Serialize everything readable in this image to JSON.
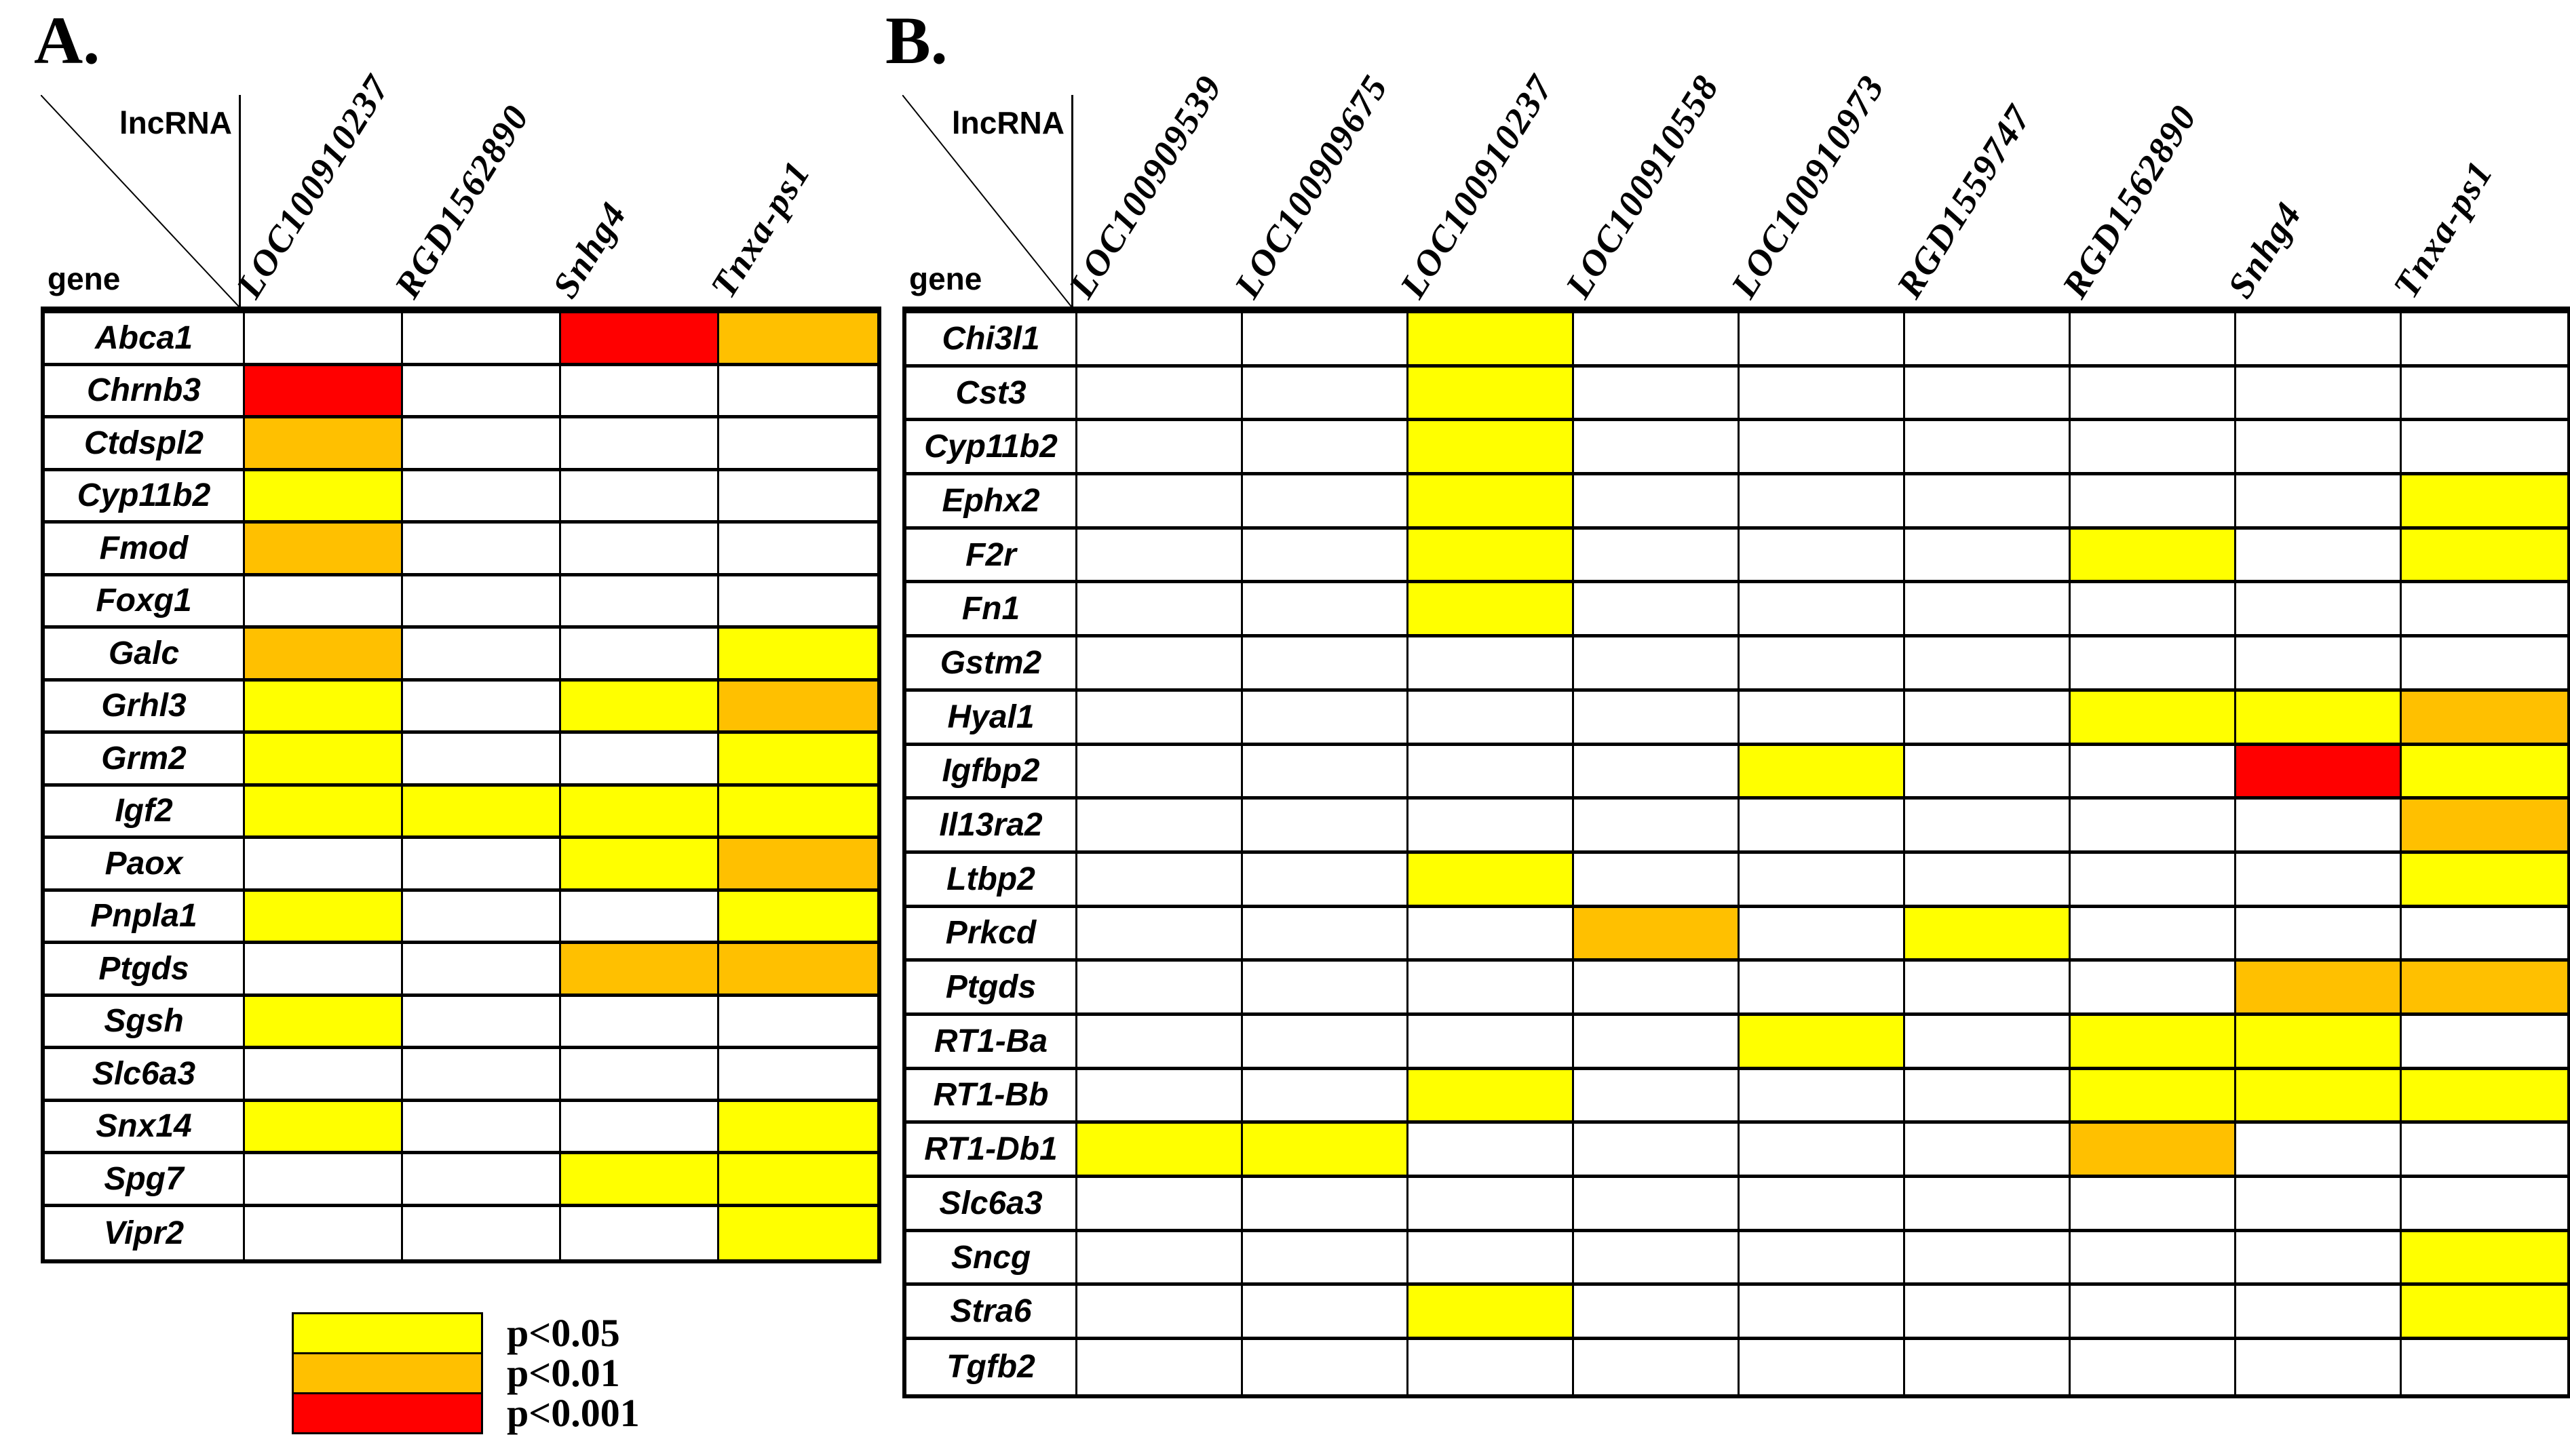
{
  "figure": {
    "background": "#FFFFFF"
  },
  "colors": {
    "": "#FFFFFF",
    "p<0.05": "#FFFF00",
    "p<0.01": "#FFC000",
    "p<0.001": "#FF0000"
  },
  "legend": {
    "items": [
      {
        "key": "p05",
        "label": "p<0.05",
        "color": "#FFFF00"
      },
      {
        "key": "p01",
        "label": "p<0.01",
        "color": "#FFC000"
      },
      {
        "key": "p001",
        "label": "p<0.001",
        "color": "#FF0000"
      }
    ]
  },
  "chart_data": [
    {
      "type": "heatmap",
      "panel": "A.",
      "x_axis_label": "lncRNA",
      "y_axis_label": "gene",
      "legend_position": "below-left",
      "columns": [
        "LOC100910237",
        "RGD1562890",
        "Snhg4",
        "Tnxa-ps1"
      ],
      "rows": [
        "Abca1",
        "Chrnb3",
        "Ctdspl2",
        "Cyp11b2",
        "Fmod",
        "Foxg1",
        "Galc",
        "Grhl3",
        "Grm2",
        "Igf2",
        "Paox",
        "Pnpla1",
        "Ptgds",
        "Sgsh",
        "Slc6a3",
        "Snx14",
        "Spg7",
        "Vipr2"
      ],
      "values": [
        [
          "",
          "",
          "p<0.001",
          "p<0.01"
        ],
        [
          "p<0.001",
          "",
          "",
          ""
        ],
        [
          "p<0.01",
          "",
          "",
          ""
        ],
        [
          "p<0.05",
          "",
          "",
          ""
        ],
        [
          "p<0.01",
          "",
          "",
          ""
        ],
        [
          "",
          "",
          "",
          ""
        ],
        [
          "p<0.01",
          "",
          "",
          "p<0.05"
        ],
        [
          "p<0.05",
          "",
          "p<0.05",
          "p<0.01"
        ],
        [
          "p<0.05",
          "",
          "",
          "p<0.05"
        ],
        [
          "p<0.05",
          "p<0.05",
          "p<0.05",
          "p<0.05"
        ],
        [
          "",
          "",
          "p<0.05",
          "p<0.01"
        ],
        [
          "p<0.05",
          "",
          "",
          "p<0.05"
        ],
        [
          "",
          "",
          "p<0.01",
          "p<0.01"
        ],
        [
          "p<0.05",
          "",
          "",
          ""
        ],
        [
          "",
          "",
          "",
          ""
        ],
        [
          "p<0.05",
          "",
          "",
          "p<0.05"
        ],
        [
          "",
          "",
          "p<0.05",
          "p<0.05"
        ],
        [
          "",
          "",
          "",
          "p<0.05"
        ]
      ],
      "value_meaning": {
        "": "not significant",
        "p<0.05": "yellow",
        "p<0.01": "orange",
        "p<0.001": "red"
      }
    },
    {
      "type": "heatmap",
      "panel": "B.",
      "x_axis_label": "lncRNA",
      "y_axis_label": "gene",
      "legend_position": "shared-with-panel-A",
      "columns": [
        "LOC100909539",
        "LOC100909675",
        "LOC100910237",
        "LOC100910558",
        "LOC100910973",
        "RGD1559747",
        "RGD1562890",
        "Snhg4",
        "Tnxa-ps1"
      ],
      "rows": [
        "Chi3l1",
        "Cst3",
        "Cyp11b2",
        "Ephx2",
        "F2r",
        "Fn1",
        "Gstm2",
        "Hyal1",
        "Igfbp2",
        "Il13ra2",
        "Ltbp2",
        "Prkcd",
        "Ptgds",
        "RT1-Ba",
        "RT1-Bb",
        "RT1-Db1",
        "Slc6a3",
        "Sncg",
        "Stra6",
        "Tgfb2"
      ],
      "values": [
        [
          "",
          "",
          "p<0.05",
          "",
          "",
          "",
          "",
          "",
          ""
        ],
        [
          "",
          "",
          "p<0.05",
          "",
          "",
          "",
          "",
          "",
          ""
        ],
        [
          "",
          "",
          "p<0.05",
          "",
          "",
          "",
          "",
          "",
          ""
        ],
        [
          "",
          "",
          "p<0.05",
          "",
          "",
          "",
          "",
          "",
          "p<0.05"
        ],
        [
          "",
          "",
          "p<0.05",
          "",
          "",
          "",
          "p<0.05",
          "",
          "p<0.05"
        ],
        [
          "",
          "",
          "p<0.05",
          "",
          "",
          "",
          "",
          "",
          ""
        ],
        [
          "",
          "",
          "",
          "",
          "",
          "",
          "",
          "",
          ""
        ],
        [
          "",
          "",
          "",
          "",
          "",
          "",
          "p<0.05",
          "p<0.05",
          "p<0.01"
        ],
        [
          "",
          "",
          "",
          "",
          "p<0.05",
          "",
          "",
          "p<0.001",
          "p<0.05"
        ],
        [
          "",
          "",
          "",
          "",
          "",
          "",
          "",
          "",
          "p<0.01"
        ],
        [
          "",
          "",
          "p<0.05",
          "",
          "",
          "",
          "",
          "",
          "p<0.05"
        ],
        [
          "",
          "",
          "",
          "p<0.01",
          "",
          "p<0.05",
          "",
          "",
          ""
        ],
        [
          "",
          "",
          "",
          "",
          "",
          "",
          "",
          "p<0.01",
          "p<0.01"
        ],
        [
          "",
          "",
          "",
          "",
          "p<0.05",
          "",
          "p<0.05",
          "p<0.05",
          ""
        ],
        [
          "",
          "",
          "p<0.05",
          "",
          "",
          "",
          "p<0.05",
          "p<0.05",
          "p<0.05"
        ],
        [
          "p<0.05",
          "p<0.05",
          "",
          "",
          "",
          "",
          "p<0.01",
          "",
          ""
        ],
        [
          "",
          "",
          "",
          "",
          "",
          "",
          "",
          "",
          ""
        ],
        [
          "",
          "",
          "",
          "",
          "",
          "",
          "",
          "",
          "p<0.05"
        ],
        [
          "",
          "",
          "p<0.05",
          "",
          "",
          "",
          "",
          "",
          "p<0.05"
        ],
        [
          "",
          "",
          "",
          "",
          "",
          "",
          "",
          "",
          ""
        ]
      ],
      "value_meaning": {
        "": "not significant",
        "p<0.05": "yellow",
        "p<0.01": "orange",
        "p<0.001": "red"
      }
    }
  ]
}
